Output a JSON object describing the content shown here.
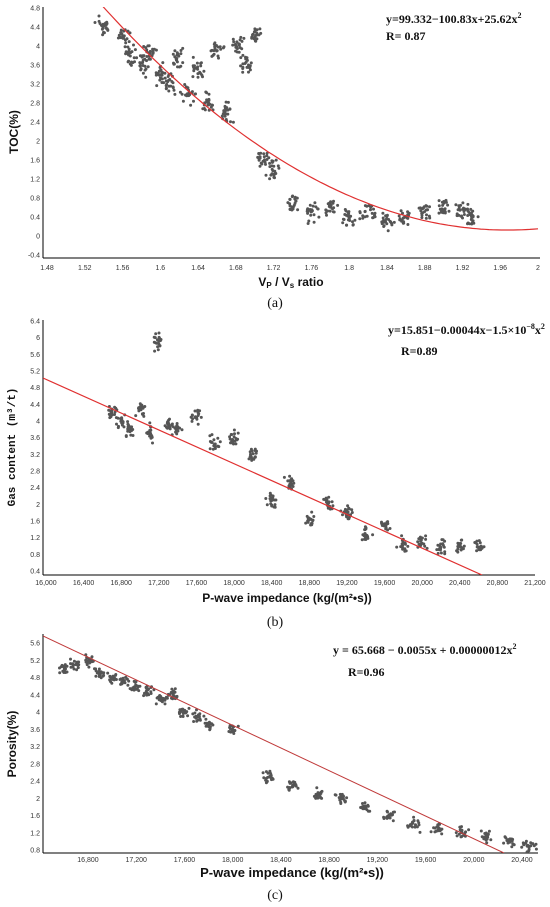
{
  "panels": [
    {
      "caption": "(a)",
      "ylabel": "TOC(%)",
      "xlabel_main": "V",
      "xlabel_sub1": "P",
      "xlabel_mid": " / V",
      "xlabel_sub2": "s",
      "xlabel_tail": " ratio",
      "eq_main": "y=99.332−100.83x+25.62x",
      "eq_sup": "2",
      "r_text": "R= 0.87",
      "xticks": [
        "1.48",
        "1.52",
        "1.56",
        "1.6",
        "1.64",
        "1.68",
        "1.72",
        "1.76",
        "1.8",
        "1.84",
        "1.88",
        "1.92",
        "1.96",
        "2"
      ],
      "yticks": [
        "4.8",
        "4.4",
        "4",
        "3.6",
        "3.2",
        "2.8",
        "2.4",
        "2",
        "1.6",
        "1.2",
        "0.8",
        "0.4",
        "0",
        "-0.4"
      ]
    },
    {
      "caption": "(b)",
      "ylabel": "Gas content (m³/t)",
      "xlabel": "P-wave impedance (kg/(m²•s))",
      "eq_main": "y=15.851−0.00044x−1.5×10",
      "eq_sup": "−8",
      "eq_tail": "x",
      "eq_sup2": "2",
      "r_text": "R=0.89",
      "xticks": [
        "16,000",
        "16,400",
        "16,800",
        "17,200",
        "17,600",
        "18,000",
        "18,400",
        "18,800",
        "19,200",
        "19,600",
        "20,000",
        "20,400",
        "20,800",
        "21,200"
      ],
      "yticks": [
        "6.4",
        "6",
        "5.6",
        "5.2",
        "4.8",
        "4.4",
        "4",
        "3.6",
        "3.2",
        "2.8",
        "2.4",
        "2",
        "1.6",
        "1.2",
        "0.8",
        "0.4"
      ]
    },
    {
      "caption": "(c)",
      "ylabel": "Porosity(%)",
      "xlabel": "P-wave impedance (kg/(m²•s))",
      "eq_main": "y = 65.668 − 0.0055x + 0.00000012x",
      "eq_sup": "2",
      "r_text": "R=0.96",
      "xticks": [
        "16,800",
        "17,200",
        "17,600",
        "18,000",
        "18,400",
        "18,800",
        "19,200",
        "19,600",
        "20,000",
        "20,400"
      ],
      "yticks": [
        "5.6",
        "5.2",
        "4.8",
        "4.4",
        "4",
        "3.6",
        "3.2",
        "2.8",
        "2.4",
        "2",
        "1.6",
        "1.2",
        "0.8"
      ]
    }
  ],
  "chart_data": [
    {
      "type": "scatter",
      "xlabel": "VP / Vs ratio",
      "ylabel": "TOC(%)",
      "xlim": [
        1.48,
        2.0
      ],
      "ylim": [
        -0.4,
        4.8
      ],
      "fit": {
        "equation": "y=99.332−100.83x+25.62x2",
        "coefficients": [
          99.332,
          -100.83,
          25.62
        ],
        "R": 0.87
      },
      "points": [
        [
          1.54,
          4.4
        ],
        [
          1.56,
          4.2
        ],
        [
          1.57,
          3.8
        ],
        [
          1.58,
          3.6
        ],
        [
          1.59,
          3.9
        ],
        [
          1.6,
          3.4
        ],
        [
          1.61,
          3.2
        ],
        [
          1.62,
          3.7
        ],
        [
          1.63,
          3.0
        ],
        [
          1.64,
          3.5
        ],
        [
          1.65,
          2.8
        ],
        [
          1.66,
          3.9
        ],
        [
          1.67,
          2.6
        ],
        [
          1.68,
          4.0
        ],
        [
          1.69,
          3.6
        ],
        [
          1.7,
          4.2
        ],
        [
          1.71,
          1.6
        ],
        [
          1.72,
          1.4
        ],
        [
          1.74,
          0.7
        ],
        [
          1.76,
          0.5
        ],
        [
          1.78,
          0.6
        ],
        [
          1.8,
          0.4
        ],
        [
          1.82,
          0.5
        ],
        [
          1.84,
          0.3
        ],
        [
          1.86,
          0.4
        ],
        [
          1.88,
          0.5
        ],
        [
          1.9,
          0.6
        ],
        [
          1.92,
          0.5
        ],
        [
          1.93,
          0.4
        ]
      ]
    },
    {
      "type": "scatter",
      "xlabel": "P-wave impedance (kg/(m²•s))",
      "ylabel": "Gas content (m³/t)",
      "xlim": [
        16000,
        21200
      ],
      "ylim": [
        0.4,
        6.4
      ],
      "fit": {
        "equation": "y=15.851−0.00044x−1.5×10−8x2",
        "R": 0.89
      },
      "points": [
        [
          16700,
          4.2
        ],
        [
          16800,
          4.0
        ],
        [
          16900,
          3.8
        ],
        [
          17000,
          4.3
        ],
        [
          17100,
          3.7
        ],
        [
          17200,
          5.9
        ],
        [
          17300,
          3.9
        ],
        [
          17400,
          3.8
        ],
        [
          17600,
          4.1
        ],
        [
          17800,
          3.5
        ],
        [
          18000,
          3.6
        ],
        [
          18200,
          3.2
        ],
        [
          18400,
          2.1
        ],
        [
          18600,
          2.5
        ],
        [
          18800,
          1.6
        ],
        [
          19000,
          2.0
        ],
        [
          19200,
          1.8
        ],
        [
          19400,
          1.3
        ],
        [
          19600,
          1.5
        ],
        [
          19800,
          1.0
        ],
        [
          20000,
          1.1
        ],
        [
          20200,
          1.0
        ],
        [
          20400,
          1.0
        ],
        [
          20600,
          1.0
        ]
      ]
    },
    {
      "type": "scatter",
      "xlabel": "P-wave impedance (kg/(m²•s))",
      "ylabel": "Porosity(%)",
      "xlim": [
        16500,
        20600
      ],
      "ylim": [
        0.8,
        5.6
      ],
      "fit": {
        "equation": "y = 65.668 − 0.0055x + 0.00000012x2",
        "coefficients": [
          65.668,
          -0.0055,
          1.2e-07
        ],
        "R": 0.96
      },
      "points": [
        [
          16600,
          5.0
        ],
        [
          16700,
          5.1
        ],
        [
          16800,
          5.2
        ],
        [
          16900,
          4.9
        ],
        [
          17000,
          4.8
        ],
        [
          17100,
          4.7
        ],
        [
          17200,
          4.6
        ],
        [
          17300,
          4.5
        ],
        [
          17400,
          4.3
        ],
        [
          17500,
          4.4
        ],
        [
          17600,
          4.0
        ],
        [
          17700,
          3.9
        ],
        [
          17800,
          3.7
        ],
        [
          18000,
          3.6
        ],
        [
          18300,
          2.5
        ],
        [
          18500,
          2.3
        ],
        [
          18700,
          2.1
        ],
        [
          18900,
          2.0
        ],
        [
          19100,
          1.8
        ],
        [
          19300,
          1.6
        ],
        [
          19500,
          1.4
        ],
        [
          19700,
          1.3
        ],
        [
          19900,
          1.2
        ],
        [
          20100,
          1.1
        ],
        [
          20300,
          1.0
        ],
        [
          20450,
          0.9
        ]
      ]
    }
  ]
}
